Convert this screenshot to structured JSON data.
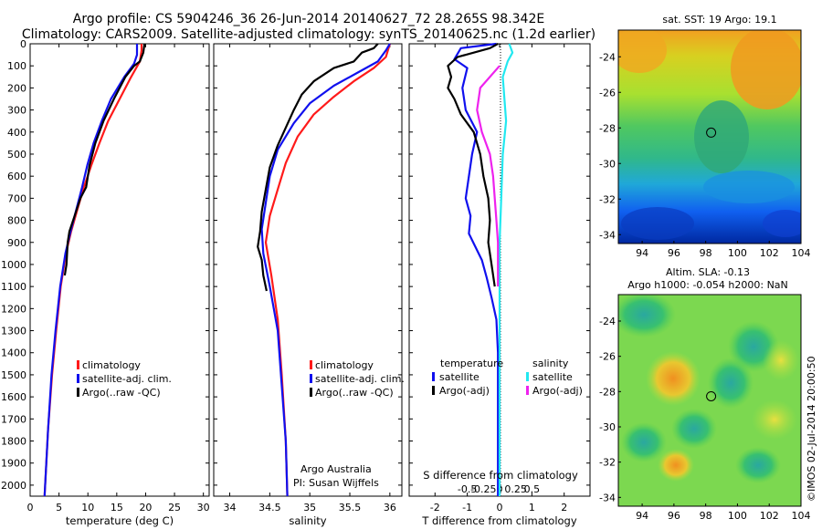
{
  "header": {
    "title_line1": "Argo profile: CS 5904246_36 26-Jun-2014 20140627_72 28.265S 98.342E",
    "title_line2": "Climatology: CARS2009. Satellite-adjusted climatology: synTS_20140625.nc (1.2d earlier)"
  },
  "colors": {
    "climatology": "#ff1a1a",
    "satellite": "#1010ee",
    "argo": "#000000",
    "sal_satellite": "#22e8f0",
    "sal_argo": "#ee22ee"
  },
  "chart_data": [
    {
      "id": "temperature",
      "type": "line",
      "xlabel": "temperature (deg C)",
      "ylabel": "",
      "xlim": [
        0,
        31
      ],
      "ylim": [
        2050,
        0
      ],
      "xticks": [
        0,
        5,
        10,
        15,
        20,
        25,
        30
      ],
      "yticks": [
        0,
        100,
        200,
        300,
        400,
        500,
        600,
        700,
        800,
        900,
        1000,
        1100,
        1200,
        1300,
        1400,
        1500,
        1600,
        1700,
        1800,
        1900,
        2000
      ],
      "legend": [
        "climatology",
        "satellite-adj. clim.",
        "Argo(..raw -QC)"
      ],
      "series": [
        {
          "name": "climatology",
          "color": "#ff1a1a",
          "points": [
            [
              19.3,
              0
            ],
            [
              19.3,
              30
            ],
            [
              19.0,
              80
            ],
            [
              17.5,
              150
            ],
            [
              15.5,
              250
            ],
            [
              13.5,
              350
            ],
            [
              12.0,
              450
            ],
            [
              10.6,
              550
            ],
            [
              9.3,
              650
            ],
            [
              8.2,
              750
            ],
            [
              7.1,
              850
            ],
            [
              6.2,
              950
            ],
            [
              5.3,
              1100
            ],
            [
              4.5,
              1300
            ],
            [
              3.8,
              1500
            ],
            [
              3.1,
              1750
            ],
            [
              2.5,
              2050
            ]
          ]
        },
        {
          "name": "satellite-adj. clim.",
          "color": "#1010ee",
          "points": [
            [
              18.5,
              0
            ],
            [
              18.5,
              50
            ],
            [
              18.0,
              90
            ],
            [
              16.3,
              150
            ],
            [
              14.0,
              250
            ],
            [
              12.4,
              350
            ],
            [
              11.0,
              450
            ],
            [
              9.9,
              550
            ],
            [
              9.0,
              650
            ],
            [
              8.0,
              750
            ],
            [
              7.0,
              850
            ],
            [
              6.1,
              950
            ],
            [
              5.2,
              1100
            ],
            [
              4.4,
              1300
            ],
            [
              3.7,
              1500
            ],
            [
              3.1,
              1750
            ],
            [
              2.5,
              2050
            ]
          ]
        },
        {
          "name": "Argo(..raw -QC)",
          "color": "#000000",
          "points": [
            [
              19.8,
              0
            ],
            [
              19.6,
              40
            ],
            [
              19.0,
              80
            ],
            [
              18.0,
              100
            ],
            [
              16.5,
              150
            ],
            [
              14.5,
              250
            ],
            [
              12.7,
              350
            ],
            [
              11.3,
              450
            ],
            [
              10.3,
              550
            ],
            [
              9.7,
              650
            ],
            [
              8.7,
              700
            ],
            [
              7.7,
              780
            ],
            [
              6.8,
              850
            ],
            [
              6.5,
              900
            ],
            [
              6.3,
              1000
            ],
            [
              6.0,
              1050
            ]
          ]
        }
      ]
    },
    {
      "id": "salinity",
      "type": "line",
      "xlabel": "salinity",
      "ylabel": "",
      "xlim": [
        33.8,
        36.15
      ],
      "ylim": [
        2050,
        0
      ],
      "xticks": [
        34,
        34.5,
        35,
        35.5,
        36
      ],
      "xticklabels": [
        "34",
        "34.5",
        "35",
        "35.5",
        "36"
      ],
      "legend": [
        "climatology",
        "satellite-adj. clim.",
        "Argo(..raw -QC)"
      ],
      "annotations": [
        "Argo Australia",
        "PI: Susan Wijffels"
      ],
      "series": [
        {
          "name": "climatology",
          "color": "#ff1a1a",
          "points": [
            [
              36.0,
              0
            ],
            [
              35.95,
              60
            ],
            [
              35.8,
              110
            ],
            [
              35.55,
              170
            ],
            [
              35.3,
              240
            ],
            [
              35.05,
              320
            ],
            [
              34.85,
              420
            ],
            [
              34.7,
              540
            ],
            [
              34.6,
              660
            ],
            [
              34.5,
              780
            ],
            [
              34.45,
              900
            ],
            [
              34.52,
              1050
            ],
            [
              34.6,
              1250
            ],
            [
              34.65,
              1500
            ],
            [
              34.7,
              1800
            ],
            [
              34.72,
              2050
            ]
          ]
        },
        {
          "name": "satellite-adj. clim.",
          "color": "#1010ee",
          "points": [
            [
              36.0,
              0
            ],
            [
              35.95,
              30
            ],
            [
              35.85,
              80
            ],
            [
              35.6,
              130
            ],
            [
              35.3,
              190
            ],
            [
              35.0,
              270
            ],
            [
              34.8,
              360
            ],
            [
              34.6,
              480
            ],
            [
              34.5,
              600
            ],
            [
              34.45,
              720
            ],
            [
              34.4,
              840
            ],
            [
              34.42,
              950
            ],
            [
              34.5,
              1100
            ],
            [
              34.6,
              1300
            ],
            [
              34.65,
              1550
            ],
            [
              34.7,
              1800
            ],
            [
              34.72,
              2050
            ]
          ]
        },
        {
          "name": "Argo(..raw -QC)",
          "color": "#000000",
          "points": [
            [
              35.85,
              0
            ],
            [
              35.8,
              20
            ],
            [
              35.65,
              40
            ],
            [
              35.55,
              80
            ],
            [
              35.3,
              110
            ],
            [
              35.05,
              170
            ],
            [
              34.9,
              230
            ],
            [
              34.8,
              300
            ],
            [
              34.7,
              380
            ],
            [
              34.6,
              460
            ],
            [
              34.5,
              560
            ],
            [
              34.45,
              660
            ],
            [
              34.4,
              760
            ],
            [
              34.38,
              850
            ],
            [
              34.35,
              920
            ],
            [
              34.4,
              980
            ],
            [
              34.42,
              1050
            ],
            [
              34.46,
              1120
            ]
          ]
        }
      ]
    },
    {
      "id": "difference",
      "type": "line",
      "xlabel": "T difference from climatology",
      "xlabel2": "S difference from climatology",
      "xlim": [
        -2.8,
        2.8
      ],
      "ylim": [
        2050,
        0
      ],
      "xticks": [
        -2,
        -1,
        0,
        1,
        2
      ],
      "xticks_s": [
        -0.5,
        -0.25,
        0,
        0.25,
        0.5
      ],
      "xticklabels_s": [
        "-0.5",
        "-0.25",
        "0",
        "0.25",
        "0.5"
      ],
      "legend_temperature_heading": "temperature",
      "legend_salinity_heading": "salinity",
      "legend": [
        "satellite",
        "Argo(-adj)",
        "satellite",
        "Argo(-adj)"
      ],
      "series": [
        {
          "name": "T satellite",
          "color": "#1010ee",
          "points": [
            [
              -0.1,
              0
            ],
            [
              -1.2,
              20
            ],
            [
              -1.4,
              70
            ],
            [
              -1.0,
              110
            ],
            [
              -1.15,
              200
            ],
            [
              -1.05,
              300
            ],
            [
              -0.7,
              400
            ],
            [
              -0.85,
              500
            ],
            [
              -0.95,
              600
            ],
            [
              -1.05,
              700
            ],
            [
              -0.9,
              780
            ],
            [
              -0.95,
              860
            ],
            [
              -0.75,
              920
            ],
            [
              -0.55,
              980
            ],
            [
              -0.4,
              1060
            ],
            [
              -0.25,
              1150
            ],
            [
              -0.1,
              1250
            ],
            [
              -0.05,
              1400
            ],
            [
              -0.05,
              2050
            ]
          ]
        },
        {
          "name": "T Argo(-adj)",
          "color": "#000000",
          "points": [
            [
              -0.05,
              0
            ],
            [
              -0.3,
              20
            ],
            [
              -1.3,
              60
            ],
            [
              -1.6,
              100
            ],
            [
              -1.5,
              150
            ],
            [
              -1.6,
              200
            ],
            [
              -1.4,
              250
            ],
            [
              -1.2,
              320
            ],
            [
              -0.8,
              400
            ],
            [
              -0.6,
              500
            ],
            [
              -0.5,
              600
            ],
            [
              -0.35,
              700
            ],
            [
              -0.3,
              800
            ],
            [
              -0.35,
              900
            ],
            [
              -0.25,
              1000
            ],
            [
              -0.15,
              1100
            ]
          ]
        },
        {
          "name": "S satellite",
          "color": "#22e8f0",
          "points": [
            [
              0.3,
              0
            ],
            [
              0.4,
              40
            ],
            [
              0.25,
              80
            ],
            [
              0.1,
              150
            ],
            [
              0.15,
              250
            ],
            [
              0.2,
              350
            ],
            [
              0.1,
              500
            ],
            [
              0.05,
              700
            ],
            [
              0.0,
              900
            ],
            [
              0.0,
              1100
            ],
            [
              0.0,
              2050
            ]
          ]
        },
        {
          "name": "S Argo(-adj)",
          "color": "#ee22ee",
          "points": [
            [
              0.0,
              100
            ],
            [
              -0.6,
              200
            ],
            [
              -0.7,
              300
            ],
            [
              -0.55,
              400
            ],
            [
              -0.3,
              500
            ],
            [
              -0.2,
              600
            ],
            [
              -0.15,
              700
            ],
            [
              -0.1,
              800
            ],
            [
              -0.05,
              900
            ],
            [
              -0.05,
              1100
            ]
          ]
        }
      ]
    },
    {
      "id": "sst_map",
      "type": "heatmap",
      "title": "sat. SST: 19 Argo: 19.1",
      "xlim": [
        92.5,
        104
      ],
      "ylim": [
        -34.5,
        -22.5
      ],
      "xticks": [
        94,
        96,
        98,
        100,
        102,
        104
      ],
      "yticks": [
        -24,
        -26,
        -28,
        -30,
        -32,
        -34
      ],
      "argo_position": [
        98.342,
        -28.265
      ]
    },
    {
      "id": "sla_map",
      "type": "heatmap",
      "title_line1": "Altim. SLA: -0.13",
      "title_line2": "Argo h1000: -0.054 h2000: NaN",
      "xlim": [
        92.5,
        104
      ],
      "ylim": [
        -34.5,
        -22.5
      ],
      "xticks": [
        94,
        96,
        98,
        100,
        102,
        104
      ],
      "yticks": [
        -24,
        -26,
        -28,
        -30,
        -32,
        -34
      ],
      "argo_position": [
        98.342,
        -28.265
      ]
    }
  ],
  "footer": {
    "stamp": "©IMOS 02-Jul-2014 20:00:50"
  }
}
